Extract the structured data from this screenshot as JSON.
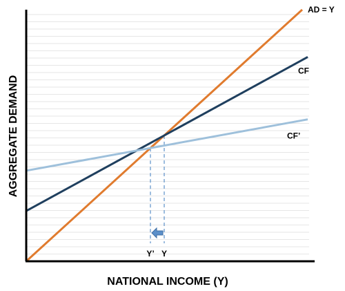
{
  "chart_data": {
    "type": "line",
    "xlabel": "NATIONAL INCOME (Y)",
    "ylabel": "AGGREGATE DEMAND",
    "xlim": [
      0,
      100
    ],
    "ylim": [
      0,
      100
    ],
    "grid": true,
    "series": [
      {
        "name": "AD = Y",
        "color": "#e07b2e",
        "x": [
          0,
          100
        ],
        "y": [
          0,
          100
        ]
      },
      {
        "name": "CF",
        "color": "#1f3f5e",
        "x": [
          0,
          100
        ],
        "y": [
          20,
          80
        ]
      },
      {
        "name": "CF’",
        "color": "#9ec0db",
        "x": [
          0,
          100
        ],
        "y": [
          36,
          56
        ]
      }
    ],
    "marked_points": [
      {
        "label": "Y’",
        "x": 45
      },
      {
        "label": "Y",
        "x": 50
      }
    ],
    "annotation": {
      "type": "arrow",
      "direction": "left",
      "from_x": 50,
      "to_x": 45,
      "color": "#5b8fc9"
    }
  }
}
